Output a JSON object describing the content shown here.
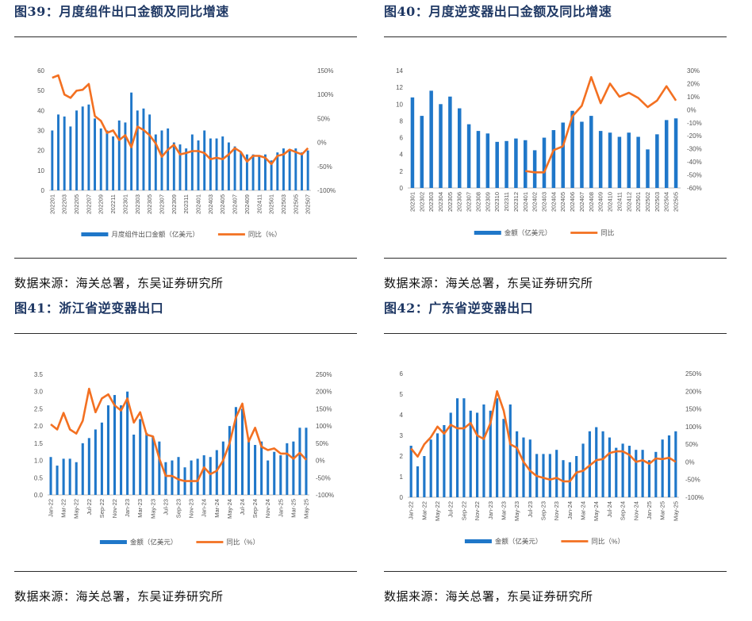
{
  "panels": [
    {
      "title": "图39：月度组件出口金额及同比增速",
      "source": "数据来源：海关总署，东吴证券研究所"
    },
    {
      "title": "图40：月度逆变器出口金额及同比增速",
      "source": "数据来源：海关总署，东吴证券研究所"
    },
    {
      "title": "图41：浙江省逆变器出口",
      "source": "数据来源：海关总署，东吴证券研究所"
    },
    {
      "title": "图42：广东省逆变器出口",
      "source": "数据来源：海关总署，东吴证券研究所"
    }
  ],
  "chart_data": [
    {
      "type": "bar",
      "categories": [
        "202201",
        "202202",
        "202203",
        "202204",
        "202205",
        "202206",
        "202207",
        "202208",
        "202209",
        "202210",
        "202211",
        "202212",
        "202301",
        "202302",
        "202303",
        "202304",
        "202305",
        "202306",
        "202307",
        "202308",
        "202309",
        "202310",
        "202311",
        "202312",
        "202401",
        "202402",
        "202403",
        "202404",
        "202405",
        "202406",
        "202407",
        "202408",
        "202409",
        "202410",
        "202411",
        "202412",
        "202501",
        "202502",
        "202503",
        "202504",
        "202505",
        "202506",
        "202507"
      ],
      "tick_labels": [
        "202201",
        "202203",
        "202205",
        "202207",
        "202209",
        "202211",
        "202301",
        "202303",
        "202305",
        "202307",
        "202309",
        "202311",
        "202401",
        "202403",
        "202405",
        "202407",
        "202409",
        "202411",
        "202501",
        "202503",
        "202505",
        "202507"
      ],
      "series": [
        {
          "name": "月度组件出口金额（亿美元）",
          "axis": "left",
          "values": [
            30,
            38,
            37,
            32,
            40,
            42,
            43,
            36,
            31,
            30,
            27,
            35,
            34,
            49,
            40,
            41,
            38,
            28,
            30,
            31,
            24,
            23,
            21,
            28,
            25,
            30,
            26,
            26,
            27,
            24,
            22,
            19,
            18,
            18,
            17,
            18,
            15,
            19,
            21,
            20,
            21,
            19,
            20
          ]
        },
        {
          "name": "同比（%）",
          "axis": "right",
          "type": "line",
          "values": [
            135,
            140,
            100,
            93,
            108,
            110,
            122,
            55,
            45,
            20,
            25,
            5,
            15,
            -10,
            33,
            26,
            15,
            -2,
            -30,
            -15,
            -5,
            -25,
            -22,
            -18,
            -18,
            -22,
            -35,
            -32,
            -35,
            -25,
            -12,
            -20,
            -40,
            -28,
            -28,
            -32,
            -45,
            -28,
            -25,
            -15,
            -20,
            -25,
            -12
          ]
        }
      ],
      "ylim_left": [
        0,
        60
      ],
      "yticks_left": [
        0,
        10,
        20,
        30,
        40,
        50,
        60
      ],
      "ylim_right": [
        -100,
        150
      ],
      "yticks_right": [
        "-100%",
        "-50%",
        "0%",
        "50%",
        "100%",
        "150%"
      ],
      "legend": "bottom"
    },
    {
      "type": "bar",
      "categories": [
        "202301",
        "202302",
        "202303",
        "202304",
        "202305",
        "202306",
        "202307",
        "202308",
        "202309",
        "202310",
        "202311",
        "202312",
        "202401",
        "202402",
        "202403",
        "202404",
        "202405",
        "202406",
        "202407",
        "202408",
        "202409",
        "202410",
        "202411",
        "202412",
        "202501",
        "202502",
        "202503",
        "202504",
        "202505"
      ],
      "tick_labels": [
        "202301",
        "202302",
        "202303",
        "202304",
        "202305",
        "202306",
        "202307",
        "202308",
        "202309",
        "202310",
        "202311",
        "202312",
        "202401",
        "202402",
        "202403",
        "202404",
        "202405",
        "202406",
        "202407",
        "202408",
        "202409",
        "202410",
        "202411",
        "202412",
        "202501",
        "202502",
        "202503",
        "202504",
        "202505"
      ],
      "series": [
        {
          "name": "金额（亿美元）",
          "axis": "left",
          "values": [
            10.8,
            8.6,
            11.6,
            10,
            10.9,
            9.5,
            7.6,
            6.8,
            6.5,
            5.5,
            5.6,
            5.9,
            5.7,
            4.5,
            6.0,
            6.9,
            7.8,
            9.2,
            7.9,
            8.6,
            6.8,
            6.6,
            6.1,
            6.6,
            6.1,
            4.6,
            6.4,
            8.1,
            8.3
          ]
        },
        {
          "name": "同比",
          "axis": "right",
          "type": "line",
          "values": [
            null,
            null,
            null,
            null,
            null,
            null,
            null,
            null,
            null,
            null,
            null,
            null,
            -47,
            -48,
            -48,
            -31,
            -28,
            -5,
            3,
            25,
            5,
            20,
            10,
            13,
            9,
            2,
            7,
            18,
            7
          ]
        }
      ],
      "ylim_left": [
        0,
        14
      ],
      "yticks_left": [
        0,
        2,
        4,
        6,
        8,
        10,
        12,
        14
      ],
      "ylim_right": [
        -60,
        30
      ],
      "yticks_right": [
        "-60%",
        "-50%",
        "-40%",
        "-30%",
        "-20%",
        "-10%",
        "0%",
        "10%",
        "20%",
        "30%"
      ],
      "legend": "bottom"
    },
    {
      "type": "bar",
      "categories": [
        "Jan-22",
        "Feb-22",
        "Mar-22",
        "Apr-22",
        "May-22",
        "Jun-22",
        "Jul-22",
        "Aug-22",
        "Sep-22",
        "Oct-22",
        "Nov-22",
        "Dec-22",
        "Jan-23",
        "Feb-23",
        "Mar-23",
        "Apr-23",
        "May-23",
        "Jun-23",
        "Jul-23",
        "Aug-23",
        "Sep-23",
        "Oct-23",
        "Nov-23",
        "Dec-23",
        "Jan-24",
        "Feb-24",
        "Mar-24",
        "Apr-24",
        "May-24",
        "Jun-24",
        "Jul-24",
        "Aug-24",
        "Sep-24",
        "Oct-24",
        "Nov-24",
        "Dec-24",
        "Jan-25",
        "Feb-25",
        "Mar-25",
        "Apr-25",
        "May-25"
      ],
      "tick_labels": [
        "Jan-22",
        "Mar-22",
        "May-22",
        "Jul-22",
        "Sep-22",
        "Nov-22",
        "Jan-23",
        "Mar-23",
        "May-23",
        "Jul-23",
        "Sep-23",
        "Nov-23",
        "Jan-24",
        "Mar-24",
        "May-24",
        "Jul-24",
        "Sep-24",
        "Nov-24",
        "Jan-25",
        "Mar-25",
        "May-25"
      ],
      "series": [
        {
          "name": "金额（亿美元）",
          "axis": "left",
          "values": [
            1.1,
            0.85,
            1.05,
            1.05,
            0.95,
            1.5,
            1.65,
            1.9,
            2.1,
            2.6,
            2.9,
            2.6,
            3.0,
            1.75,
            2.2,
            1.8,
            1.7,
            1.55,
            0.95,
            1.0,
            1.1,
            0.8,
            1.0,
            1.05,
            1.15,
            1.1,
            1.3,
            1.55,
            2.0,
            2.55,
            2.5,
            1.65,
            1.45,
            1.55,
            1.0,
            1.25,
            1.15,
            1.5,
            1.55,
            1.95,
            1.95
          ]
        },
        {
          "name": "同比（%）",
          "axis": "right",
          "type": "line",
          "values": [
            105,
            90,
            138,
            90,
            78,
            115,
            208,
            140,
            180,
            192,
            160,
            145,
            180,
            110,
            140,
            75,
            70,
            5,
            -45,
            -45,
            -55,
            -60,
            -60,
            -60,
            -20,
            -40,
            -30,
            0,
            50,
            125,
            165,
            55,
            95,
            40,
            30,
            35,
            20,
            20,
            5,
            22,
            2
          ]
        }
      ],
      "ylim_left": [
        0,
        3.5
      ],
      "yticks_left": [
        "0.0",
        "0.5",
        "1.0",
        "1.5",
        "2.0",
        "2.5",
        "3.0",
        "3.5"
      ],
      "ylim_right": [
        -100,
        250
      ],
      "yticks_right": [
        "-100%",
        "-50%",
        "0%",
        "50%",
        "100%",
        "150%",
        "200%",
        "250%"
      ],
      "legend": "bottom"
    },
    {
      "type": "bar",
      "categories": [
        "Jan-22",
        "Feb-22",
        "Mar-22",
        "Apr-22",
        "May-22",
        "Jun-22",
        "Jul-22",
        "Aug-22",
        "Sep-22",
        "Oct-22",
        "Nov-22",
        "Dec-22",
        "Jan-23",
        "Feb-23",
        "Mar-23",
        "Apr-23",
        "May-23",
        "Jun-23",
        "Jul-23",
        "Aug-23",
        "Sep-23",
        "Oct-23",
        "Nov-23",
        "Dec-23",
        "Jan-24",
        "Feb-24",
        "Mar-24",
        "Apr-24",
        "May-24",
        "Jun-24",
        "Jul-24",
        "Aug-24",
        "Sep-24",
        "Oct-24",
        "Nov-24",
        "Dec-24",
        "Jan-25",
        "Feb-25",
        "Mar-25",
        "Apr-25",
        "May-25"
      ],
      "tick_labels": [
        "Jan-22",
        "Mar-22",
        "May-22",
        "Jul-22",
        "Sep-22",
        "Nov-22",
        "Jan-23",
        "Mar-23",
        "May-23",
        "Jul-23",
        "Sep-23",
        "Nov-23",
        "Jan-24",
        "Mar-24",
        "May-24",
        "Jul-24",
        "Sep-24",
        "Nov-24",
        "Jan-25",
        "Mar-25",
        "May-25"
      ],
      "series": [
        {
          "name": "金额（亿美元）",
          "axis": "left",
          "values": [
            2.5,
            1.5,
            2.0,
            2.8,
            3.1,
            3.5,
            4.1,
            4.8,
            4.8,
            4.2,
            4.1,
            4.5,
            4.2,
            4.8,
            3.8,
            4.5,
            3.2,
            2.9,
            2.8,
            2.1,
            2.1,
            2.1,
            2.3,
            1.8,
            1.7,
            2.0,
            2.6,
            3.2,
            3.4,
            3.2,
            2.9,
            2.4,
            2.6,
            2.5,
            2.3,
            2.3,
            1.8,
            2.2,
            2.8,
            3.0,
            3.2
          ]
        },
        {
          "name": "同比（%）",
          "axis": "right",
          "type": "line",
          "values": [
            38,
            15,
            50,
            70,
            100,
            80,
            105,
            95,
            95,
            110,
            75,
            65,
            110,
            200,
            145,
            50,
            40,
            0,
            -25,
            -40,
            -45,
            -50,
            -45,
            -55,
            -55,
            -30,
            -25,
            -10,
            5,
            8,
            25,
            30,
            30,
            20,
            0,
            5,
            -5,
            10,
            8,
            12,
            0
          ]
        }
      ],
      "ylim_left": [
        0,
        6
      ],
      "yticks_left": [
        0,
        1,
        2,
        3,
        4,
        5,
        6
      ],
      "ylim_right": [
        -100,
        250
      ],
      "yticks_right": [
        "-100%",
        "-50%",
        "0%",
        "50%",
        "100%",
        "150%",
        "200%",
        "250%"
      ],
      "legend": "bottom"
    }
  ],
  "colors": {
    "bar": "#1f77c9",
    "line": "#f37021",
    "title": "#1f3864"
  }
}
